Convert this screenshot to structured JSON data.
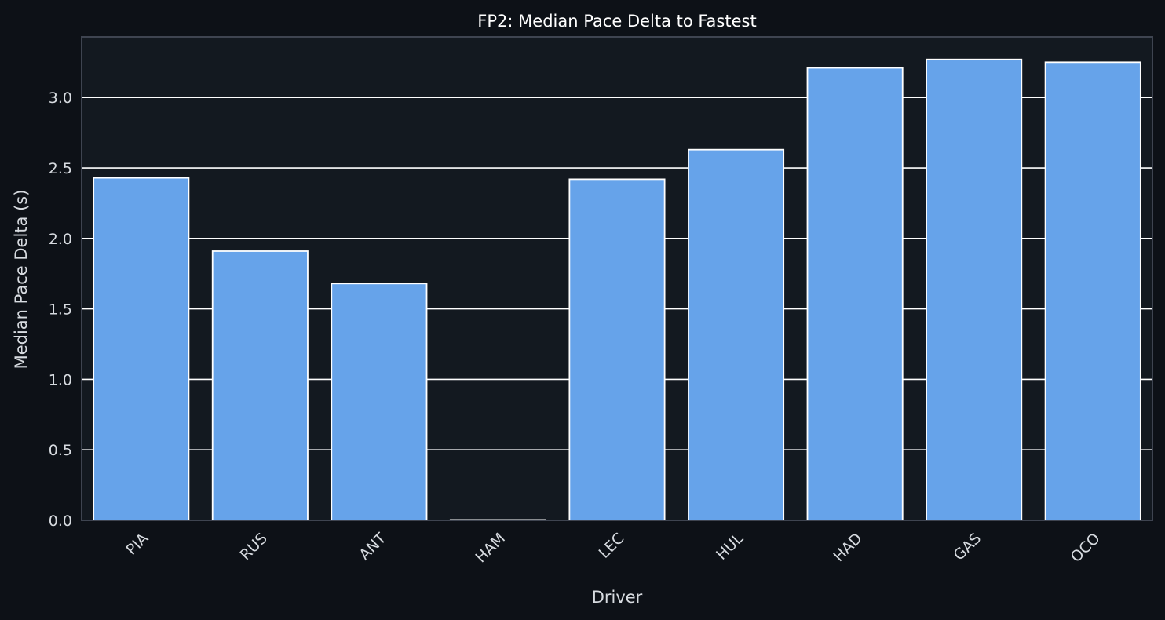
{
  "chart_data": {
    "type": "bar",
    "title": "FP2: Median Pace Delta to Fastest",
    "xlabel": "Driver",
    "ylabel": "Median Pace Delta (s)",
    "categories": [
      "PIA",
      "RUS",
      "ANT",
      "HAM",
      "LEC",
      "HUL",
      "HAD",
      "GAS",
      "OCO"
    ],
    "values": [
      2.43,
      1.91,
      1.68,
      0.0,
      2.42,
      2.63,
      3.21,
      3.27,
      3.25
    ],
    "ylim": [
      0,
      3.43
    ],
    "yticks": [
      0.0,
      0.5,
      1.0,
      1.5,
      2.0,
      2.5,
      3.0
    ],
    "ytick_labels": [
      "0.0",
      "0.5",
      "1.0",
      "1.5",
      "2.0",
      "2.5",
      "3.0"
    ],
    "grid": "horizontal",
    "x_tick_rotation": "45 degrees",
    "colors": {
      "figure_background": "#0d1117",
      "plot_background": "#131920",
      "bar_fill": "#66a3ea",
      "bar_edge": "#ffffff",
      "grid": "#ffffff",
      "spine": "#3e4450",
      "title_text": "#ffffff",
      "label_text": "#d7dbe0"
    }
  }
}
